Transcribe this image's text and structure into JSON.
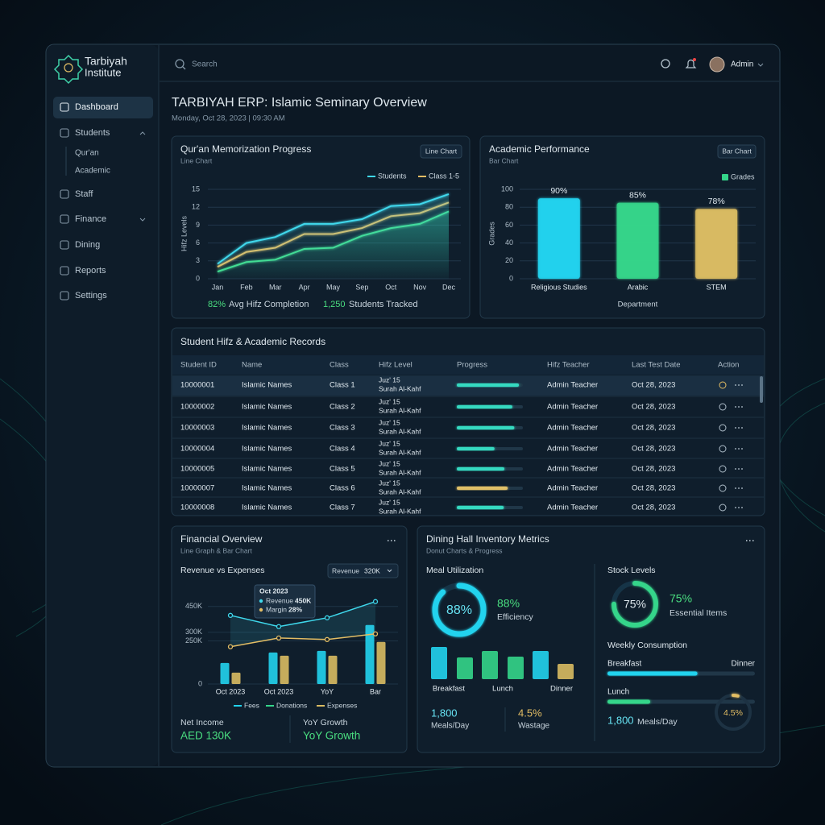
{
  "sidebar": {
    "brand": "Tarbiyah",
    "brand_sub": "Institute",
    "nav": [
      {
        "label": "Dashboard"
      },
      {
        "label": "Students",
        "children": [
          "Qur'an",
          "Academic"
        ]
      },
      {
        "label": "Staff"
      },
      {
        "label": "Finance"
      },
      {
        "label": "Dining"
      },
      {
        "label": "Reports"
      },
      {
        "label": "Settings"
      }
    ]
  },
  "header": {
    "search": "Search",
    "user": "Admin"
  },
  "page": {
    "title": "TARBIYAH ERP: Islamic Seminary Overview",
    "datetime": "Monday, Oct 28, 2023 | 09:30 AM"
  },
  "memorization": {
    "type": "line",
    "title": "Qur'an Memorization Progress",
    "subtitle": "Line Chart",
    "badge": "Line Chart",
    "y_label": "Hifz Levels",
    "categories": [
      "Jan",
      "Feb",
      "Mar",
      "Apr",
      "May",
      "Sep",
      "Oct",
      "Nov",
      "Dec"
    ],
    "series": [
      {
        "name": "Students",
        "color": "#3fd8ec",
        "values": [
          2.5,
          6,
          7,
          9.2,
          9.2,
          10,
          12.2,
          12.5,
          14.2
        ]
      },
      {
        "name": "Class 1-5",
        "color": "#e3bd64",
        "values": [
          2,
          4.5,
          5.2,
          7.5,
          7.5,
          8.5,
          10.5,
          11,
          12.8
        ]
      },
      {
        "color": "#43dd8e",
        "values": [
          1.2,
          2.8,
          3.2,
          5,
          5.2,
          7.2,
          8.5,
          9.2,
          11.3
        ]
      }
    ],
    "ylim": [
      0,
      15
    ],
    "yticks": [
      0,
      3,
      6,
      9,
      12,
      15
    ],
    "grid": true,
    "stats": [
      {
        "value": "82%",
        "label": "Avg Hifz Completion"
      },
      {
        "value": "1,250",
        "label": "Students Tracked"
      }
    ]
  },
  "academic": {
    "type": "bar",
    "title": "Academic Performance",
    "subtitle": "Bar Chart",
    "badge": "Bar Chart",
    "y_label": "Grades",
    "x_label": "Department",
    "categories": [
      "Religious Studies",
      "Arabic",
      "STEM"
    ],
    "series": [
      {
        "name": "Grades",
        "color": "#34d58a",
        "values": [
          90,
          85,
          78
        ],
        "value_labels": [
          "90%",
          "85%",
          "78%"
        ]
      }
    ],
    "colors": [
      "#22d3ee",
      "#34d58a",
      "#d9bb62"
    ],
    "ylim": [
      0,
      100
    ],
    "yticks": [
      0,
      20,
      40,
      60,
      80,
      100
    ],
    "grid": true
  },
  "records": {
    "title": "Student Hifz & Academic Records",
    "columns": [
      "Student ID",
      "Name",
      "Class",
      "Hifz Level",
      "Progress",
      "Hifz Teacher",
      "Last Test Date",
      "Action"
    ],
    "progress_lim": [
      0,
      100
    ],
    "rows": [
      {
        "id": "10000001",
        "name": "Islamic Names",
        "class": "Class 1",
        "juz": "Juz' 15",
        "surah": "Surah Al-Kahf",
        "progress": 94,
        "color": "#34d9c0",
        "teacher": "Admin Teacher",
        "date": "Oct 28, 2023"
      },
      {
        "id": "10000002",
        "name": "Islamic Names",
        "class": "Class 2",
        "juz": "Juz' 15",
        "surah": "Surah Al-Kahf",
        "progress": 84,
        "color": "#34d9c0",
        "teacher": "Admin Teacher",
        "date": "Oct 28, 2023"
      },
      {
        "id": "10000003",
        "name": "Islamic Names",
        "class": "Class 3",
        "juz": "Juz' 15",
        "surah": "Surah Al-Kahf",
        "progress": 87,
        "color": "#34d9c0",
        "teacher": "Admin Teacher",
        "date": "Oct 28, 2023"
      },
      {
        "id": "10000004",
        "name": "Islamic Names",
        "class": "Class 4",
        "juz": "Juz' 15",
        "surah": "Surah Al-Kahf",
        "progress": 57,
        "color": "#34d9c0",
        "teacher": "Admin Teacher",
        "date": "Oct 28, 2023"
      },
      {
        "id": "10000005",
        "name": "Islamic Names",
        "class": "Class 5",
        "juz": "Juz' 15",
        "surah": "Surah Al-Kahf",
        "progress": 72,
        "color": "#34d9c0",
        "teacher": "Admin Teacher",
        "date": "Oct 28, 2023"
      },
      {
        "id": "10000007",
        "name": "Islamic Names",
        "class": "Class 6",
        "juz": "Juz' 15",
        "surah": "Surah Al-Kahf",
        "progress": 77,
        "color": "#e0c068",
        "teacher": "Admin Teacher",
        "date": "Oct 28, 2023"
      },
      {
        "id": "10000008",
        "name": "Islamic Names",
        "class": "Class 7",
        "juz": "Juz' 15",
        "surah": "Surah Al-Kahf",
        "progress": 71,
        "color": "#34d9c0",
        "teacher": "Admin Teacher",
        "date": "Oct 28, 2023"
      }
    ]
  },
  "financial": {
    "type": "bar",
    "title": "Financial Overview",
    "subtitle": "Line Graph & Bar Chart",
    "chart_title": "Revenue vs Expenses",
    "dropdown": {
      "label": "Revenue",
      "value": "320K"
    },
    "tooltip": {
      "title": "Oct 2023",
      "items": [
        {
          "name": "Revenue",
          "value": "450K",
          "color": "#3fd8ec"
        },
        {
          "name": "Margin",
          "value": "28%",
          "color": "#e3bd64"
        }
      ]
    },
    "categories": [
      "Oct 2023",
      "Oct 2023",
      "YoY",
      "Bar"
    ],
    "series": [
      {
        "name": "Fees",
        "color": "#22d3ee",
        "values": [
          122000,
          183000,
          192000,
          342000
        ]
      },
      {
        "name": "Expenses",
        "color": "#d9bb62",
        "values": [
          66000,
          164000,
          164000,
          244000
        ]
      }
    ],
    "lines": [
      {
        "color": "#3fd8ec",
        "values": [
          398000,
          333000,
          384000,
          478000
        ]
      },
      {
        "color": "#e3bd64",
        "values": [
          216000,
          267000,
          258000,
          291000
        ]
      }
    ],
    "legend": [
      {
        "name": "Fees",
        "color": "#22d3ee"
      },
      {
        "name": "Donations",
        "color": "#34d58a"
      },
      {
        "name": "Expenses",
        "color": "#d9bb62"
      }
    ],
    "ylim": [
      0,
      500000
    ],
    "yticks": [
      0,
      {
        "value": 250000,
        "label": "250K"
      },
      {
        "value": 300000,
        "label": "300K"
      },
      {
        "value": 450000,
        "label": "450K"
      }
    ],
    "grid": true,
    "summary": [
      {
        "label": "Net Income",
        "value": "AED 130K"
      },
      {
        "label": "YoY Growth",
        "value": "YoY Growth"
      }
    ]
  },
  "dining": {
    "title": "Dining Hall Inventory Metrics",
    "subtitle": "Donut Charts & Progress",
    "meal": {
      "title": "Meal Utilization",
      "value": 88,
      "label": "88%",
      "caption": "Efficiency",
      "lim": [
        0,
        100
      ]
    },
    "meal_bars": {
      "type": "bar",
      "categories": [
        "Breakfast",
        null,
        "Lunch",
        null,
        "Dinner",
        null
      ],
      "values": [
        40,
        27,
        35,
        28,
        35,
        19
      ],
      "colors": [
        "#22d3ee",
        "#34d58a",
        "#34d58a",
        "#34d58a",
        "#22d3ee",
        "#d9bb62"
      ],
      "ylim": [
        0,
        50
      ]
    },
    "meal_stats": [
      {
        "value": "1,800",
        "label": "Meals/Day"
      },
      {
        "value": "4.5%",
        "label": "Wastage"
      }
    ],
    "stock": {
      "title": "Stock Levels",
      "value": 75,
      "label": "75%",
      "caption": "Essential Items",
      "lim": [
        0,
        100
      ]
    },
    "weekly": {
      "title": "Weekly Consumption",
      "lim": [
        0,
        100
      ],
      "items": [
        {
          "name": "Breakfast",
          "end_label": "Dinner",
          "value": 61,
          "color": "#22d3ee"
        },
        {
          "name": "Lunch",
          "value": 29,
          "color": "#34d58a"
        }
      ]
    },
    "daily": {
      "value": "1,800",
      "label": "Meals/Day"
    },
    "wastage_ring": {
      "value": 4.5,
      "label": "4.5%",
      "lim": [
        0,
        100
      ]
    }
  }
}
